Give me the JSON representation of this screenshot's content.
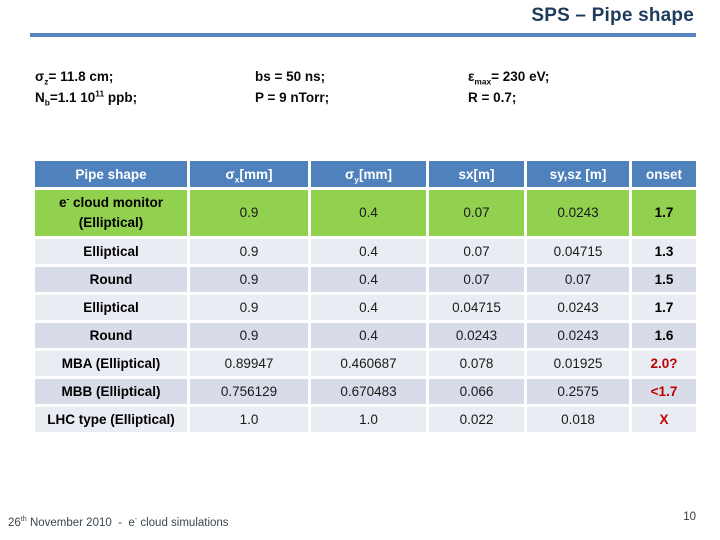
{
  "title": {
    "text": "SPS – Pipe shape"
  },
  "params": [
    {
      "lines": [
        [
          {
            "t": "σ"
          },
          {
            "t": "z",
            "sub": true
          },
          {
            "t": "= 11.8 cm;"
          }
        ],
        [
          {
            "t": "N"
          },
          {
            "t": "b",
            "sub": true
          },
          {
            "t": "=1.1 10"
          },
          {
            "t": "11",
            "sup": true
          },
          {
            "t": " ppb;"
          }
        ]
      ]
    },
    {
      "lines": [
        [
          {
            "t": "bs = 50 ns;"
          }
        ],
        [
          {
            "t": "P = 9 nTorr;"
          }
        ]
      ]
    },
    {
      "lines": [
        [
          {
            "t": "ε"
          },
          {
            "t": "max",
            "sub": true
          },
          {
            "t": "= 230 eV;"
          }
        ],
        [
          {
            "t": "R = 0.7;"
          }
        ]
      ]
    }
  ],
  "table": {
    "headers": [
      [
        {
          "t": "Pipe shape"
        }
      ],
      [
        {
          "t": "σ"
        },
        {
          "t": "x",
          "sub": true
        },
        {
          "t": "[mm]"
        }
      ],
      [
        {
          "t": "σ"
        },
        {
          "t": "y",
          "sub": true
        },
        {
          "t": "[mm]"
        }
      ],
      [
        {
          "t": "sx[m]"
        }
      ],
      [
        {
          "t": "sy,sz [m]"
        }
      ],
      [
        {
          "t": "onset"
        }
      ]
    ],
    "rows": [
      {
        "band": "green",
        "shape": [
          [
            {
              "t": "e"
            },
            {
              "t": "-",
              "sup": true
            },
            {
              "t": " cloud monitor"
            }
          ],
          [
            {
              "t": "(Elliptical)"
            }
          ]
        ],
        "values": [
          "0.9",
          "0.4",
          "0.07",
          "0.0243"
        ],
        "onset": "1.7",
        "onset_red": false
      },
      {
        "band": "light",
        "shape": [
          [
            {
              "t": "Elliptical"
            }
          ]
        ],
        "values": [
          "0.9",
          "0.4",
          "0.07",
          "0.04715"
        ],
        "onset": "1.3",
        "onset_red": false
      },
      {
        "band": "dark",
        "shape": [
          [
            {
              "t": "Round"
            }
          ]
        ],
        "values": [
          "0.9",
          "0.4",
          "0.07",
          "0.07"
        ],
        "onset": "1.5",
        "onset_red": false
      },
      {
        "band": "light",
        "shape": [
          [
            {
              "t": "Elliptical"
            }
          ]
        ],
        "values": [
          "0.9",
          "0.4",
          "0.04715",
          "0.0243"
        ],
        "onset": "1.7",
        "onset_red": false
      },
      {
        "band": "dark",
        "shape": [
          [
            {
              "t": "Round"
            }
          ]
        ],
        "values": [
          "0.9",
          "0.4",
          "0.0243",
          "0.0243"
        ],
        "onset": "1.6",
        "onset_red": false
      },
      {
        "band": "light",
        "shape": [
          [
            {
              "t": "MBA (Elliptical)"
            }
          ]
        ],
        "values": [
          "0.89947",
          "0.460687",
          "0.078",
          "0.01925"
        ],
        "onset": "2.0?",
        "onset_red": true
      },
      {
        "band": "dark",
        "shape": [
          [
            {
              "t": "MBB (Elliptical)"
            }
          ]
        ],
        "values": [
          "0.756129",
          "0.670483",
          "0.066",
          "0.2575"
        ],
        "onset": "<1.7",
        "onset_red": true
      },
      {
        "band": "light",
        "shape": [
          [
            {
              "t": "LHC type (Elliptical)"
            }
          ]
        ],
        "values": [
          "1.0",
          "1.0",
          "0.022",
          "0.018"
        ],
        "onset": "X",
        "onset_red": true
      }
    ]
  },
  "footer": {
    "parts": [
      {
        "t": "26"
      },
      {
        "t": "th",
        "sup": true
      },
      {
        "t": " November 2010  -  e"
      },
      {
        "t": "-",
        "sup": true
      },
      {
        "t": " cloud simulations"
      }
    ]
  },
  "page_number": "10",
  "colors": {
    "header-blue": "#4f81bd",
    "row-green": "#92d050",
    "band-light": "#eaecf3",
    "band-dark": "#d8dbe8",
    "accent-red": "#c00000",
    "title-navy": "#1e3b5c",
    "rule-blue": "#5885c2"
  }
}
